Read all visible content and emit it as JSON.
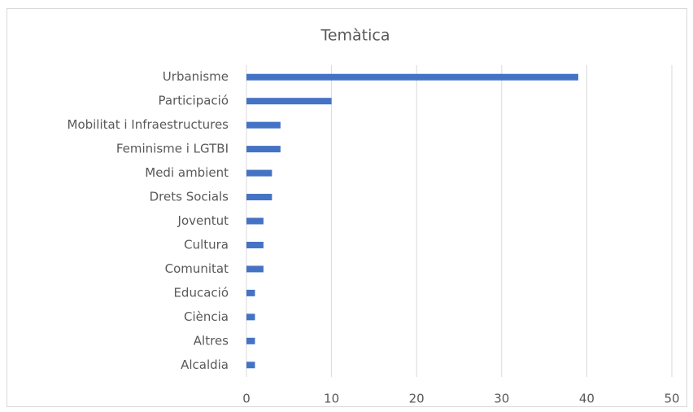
{
  "chart_data": {
    "type": "bar",
    "orientation": "horizontal",
    "title": "Temàtica",
    "categories": [
      "Urbanisme",
      "Participació",
      "Mobilitat i Infraestructures",
      "Feminisme i LGTBI",
      "Medi ambient",
      "Drets Socials",
      "Joventut",
      "Cultura",
      "Comunitat",
      "Educació",
      "Ciència",
      "Altres",
      "Alcaldia"
    ],
    "values": [
      39,
      10,
      4,
      4,
      3,
      3,
      2,
      2,
      2,
      1,
      1,
      1,
      1
    ],
    "color": "#4472c4",
    "xlim": [
      0,
      50
    ],
    "xticks": [
      0,
      10,
      20,
      30,
      40,
      50
    ],
    "grid": true
  }
}
